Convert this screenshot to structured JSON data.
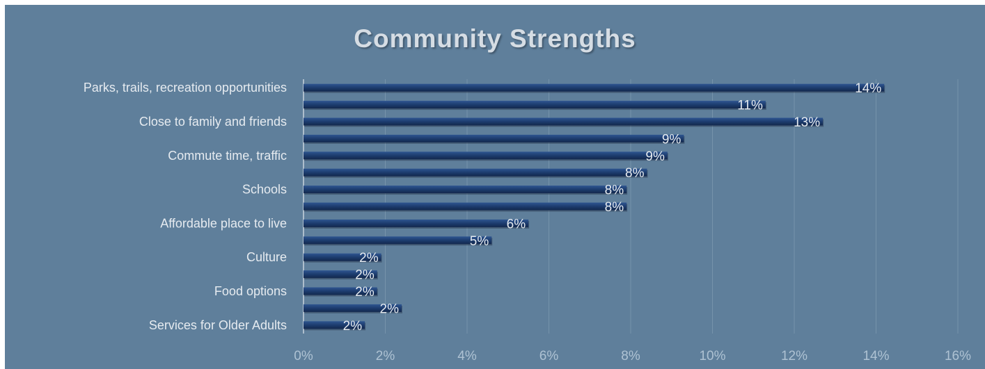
{
  "colors": {
    "background": "#5f7f9b",
    "bar": "#1b3a6b",
    "bar_highlight": "#2e5590",
    "gridline": "#7693ab"
  },
  "chart_data": {
    "type": "bar",
    "orientation": "horizontal",
    "title": "Community  Strengths",
    "category_labels": [
      "Parks, trails, recreation opportunities",
      "",
      "Close to family and friends",
      "",
      "Commute time, traffic",
      "",
      "Schools",
      "",
      "Affordable place to live",
      "",
      "Culture",
      "",
      "Food options",
      "",
      "Services for Older Adults"
    ],
    "values": [
      14.2,
      11.3,
      12.7,
      9.3,
      8.9,
      8.4,
      7.9,
      7.9,
      5.5,
      4.6,
      1.9,
      1.8,
      1.8,
      2.4,
      1.5
    ],
    "data_labels": [
      "14%",
      "11%",
      "13%",
      "9%",
      "9%",
      "8%",
      "8%",
      "8%",
      "6%",
      "5%",
      "2%",
      "2%",
      "2%",
      "2%",
      "2%"
    ],
    "xlim": [
      0,
      16
    ],
    "x_ticks": [
      0,
      2,
      4,
      6,
      8,
      10,
      12,
      14,
      16
    ],
    "x_tick_labels": [
      "0%",
      "2%",
      "4%",
      "6%",
      "8%",
      "10%",
      "12%",
      "14%",
      "16%"
    ],
    "grid": true,
    "legend": "none"
  }
}
